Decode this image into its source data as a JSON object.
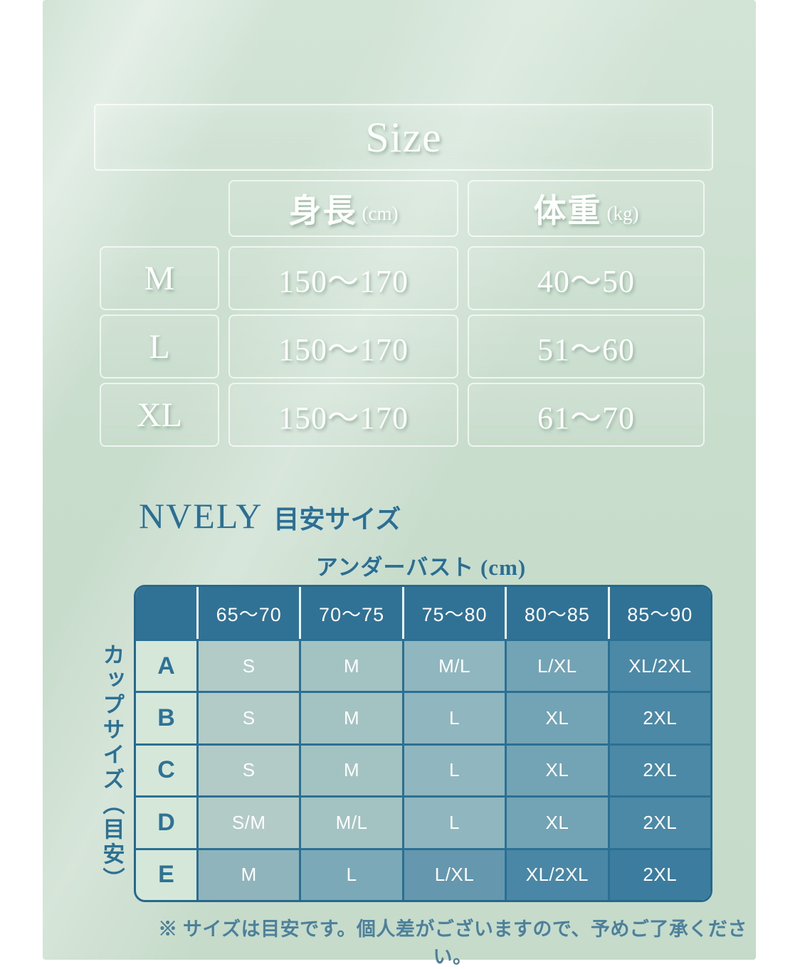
{
  "colors": {
    "background_mint": "#cbdecf",
    "accent_teal_text": "#2c6f94",
    "cup_header_bg": "#2f7296",
    "cup_grid_line": "#2a6f94",
    "cup_outer_border": "#26688c",
    "cup_label_col_bg": "#d5e7d9",
    "cup_column_colors": [
      "#b2cbc6",
      "#a3c2c2",
      "#90b7bf",
      "#72a4b5",
      "#4c89a7"
    ],
    "cup_column_colors_last_row": [
      "#90b4bb",
      "#7ca9b8",
      "#6598af",
      "#4a87a6",
      "#3b7c9f"
    ],
    "footer_text_color": "#4d819b"
  },
  "size_section": {
    "title": "Size",
    "col1_label": "身長",
    "col1_unit": "(cm)",
    "col2_label": "体重",
    "col2_unit": "(kg)"
  },
  "cup_section": {
    "brand": "NVELY",
    "subtitle": "目安サイズ",
    "top_axis": "アンダーバスト (cm)",
    "left_axis": "カップサイズ（目安）"
  },
  "footer_note": "※ サイズは目安です。個人差がございますので、予めご了承ください。",
  "chart_data": [
    {
      "type": "table",
      "title": "Size",
      "columns": [
        "",
        "身長 (cm)",
        "体重 (kg)"
      ],
      "rows": [
        [
          "M",
          "150〜170",
          "40〜50"
        ],
        [
          "L",
          "150〜170",
          "51〜60"
        ],
        [
          "XL",
          "150〜170",
          "61〜70"
        ]
      ]
    },
    {
      "type": "table",
      "title": "NVELY 目安サイズ",
      "x_axis_label": "アンダーバスト (cm)",
      "y_axis_label": "カップサイズ（目安）",
      "columns": [
        "65〜70",
        "70〜75",
        "75〜80",
        "80〜85",
        "85〜90"
      ],
      "row_labels": [
        "A",
        "B",
        "C",
        "D",
        "E"
      ],
      "rows": [
        [
          "S",
          "M",
          "M/L",
          "L/XL",
          "XL/2XL"
        ],
        [
          "S",
          "M",
          "L",
          "XL",
          "2XL"
        ],
        [
          "S",
          "M",
          "L",
          "XL",
          "2XL"
        ],
        [
          "S/M",
          "M/L",
          "L",
          "XL",
          "2XL"
        ],
        [
          "M",
          "L",
          "L/XL",
          "XL/2XL",
          "2XL"
        ]
      ]
    }
  ]
}
